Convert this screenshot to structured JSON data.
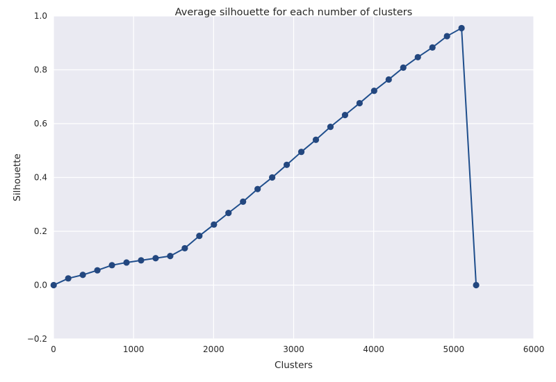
{
  "chart_data": {
    "type": "line",
    "title": "Average silhouette for each number of clusters",
    "xlabel": "Clusters",
    "ylabel": "Silhouette",
    "xlim": [
      0,
      6000
    ],
    "ylim": [
      -0.2,
      1.0
    ],
    "xticks": [
      0,
      1000,
      2000,
      3000,
      4000,
      5000,
      6000
    ],
    "yticks": [
      -0.2,
      0.0,
      0.2,
      0.4,
      0.6,
      0.8,
      1.0
    ],
    "xtick_labels": [
      "0",
      "1000",
      "2000",
      "3000",
      "4000",
      "5000",
      "6000"
    ],
    "ytick_labels": [
      "−0.2",
      "0.0",
      "0.2",
      "0.4",
      "0.6",
      "0.8",
      "1.0"
    ],
    "grid": true,
    "colors": {
      "line": "#1f4e8c",
      "marker": "#23477f",
      "background": "#eaeaf2",
      "grid": "#ffffff"
    },
    "series": [
      {
        "x": [
          2,
          184,
          366,
          548,
          730,
          912,
          1094,
          1276,
          1458,
          1640,
          1822,
          2004,
          2186,
          2368,
          2550,
          2732,
          2914,
          3096,
          3278,
          3460,
          3642,
          3824,
          4006,
          4188,
          4370,
          4552,
          4734,
          4916,
          5098,
          5280
        ],
        "y": [
          0.0,
          0.025,
          0.038,
          0.055,
          0.074,
          0.084,
          0.092,
          0.1,
          0.108,
          0.137,
          0.183,
          0.225,
          0.268,
          0.31,
          0.357,
          0.4,
          0.447,
          0.495,
          0.54,
          0.588,
          0.632,
          0.676,
          0.722,
          0.764,
          0.808,
          0.847,
          0.883,
          0.925,
          0.955,
          0.0
        ]
      }
    ]
  }
}
